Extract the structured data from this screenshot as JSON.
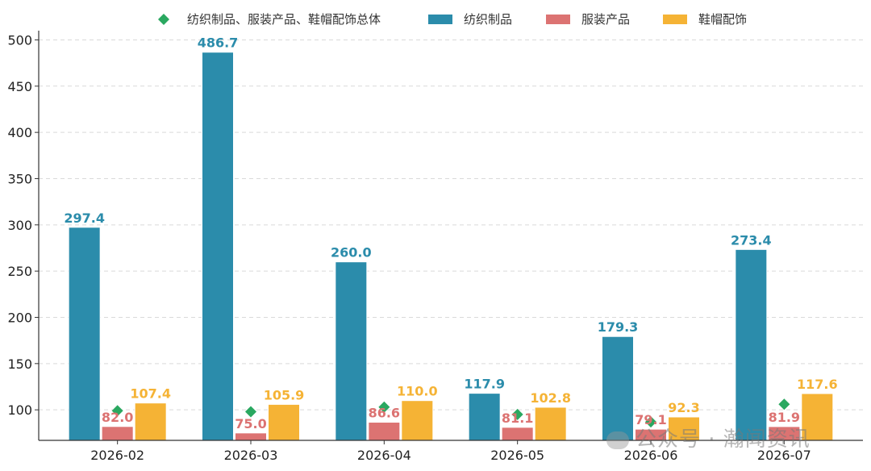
{
  "chart_data": {
    "type": "bar",
    "categories": [
      "2026-02",
      "2026-03",
      "2026-04",
      "2026-05",
      "2026-06",
      "2026-07"
    ],
    "series": [
      {
        "name": "纺织制品",
        "color": "#2b8cab",
        "values": [
          297.4,
          486.7,
          260.0,
          117.9,
          179.3,
          273.4
        ]
      },
      {
        "name": "服装产品",
        "color": "#dc7372",
        "values": [
          82.0,
          75.0,
          86.6,
          81.1,
          79.1,
          81.9
        ]
      },
      {
        "name": "鞋帽配饰",
        "color": "#f5b335",
        "values": [
          107.4,
          105.9,
          110.0,
          102.8,
          92.3,
          117.6
        ]
      }
    ],
    "overall": {
      "name": "纺织制品、服装产品、鞋帽配饰总体",
      "color": "#2aa860",
      "values": [
        99,
        98,
        103,
        95,
        87,
        106
      ]
    },
    "ylim": [
      67,
      510
    ],
    "yticks": [
      100,
      150,
      200,
      250,
      300,
      350,
      400,
      450,
      500
    ],
    "grid": true,
    "legend_position": "top"
  },
  "watermark": {
    "text": "公众号 · 瀚闻资讯"
  }
}
